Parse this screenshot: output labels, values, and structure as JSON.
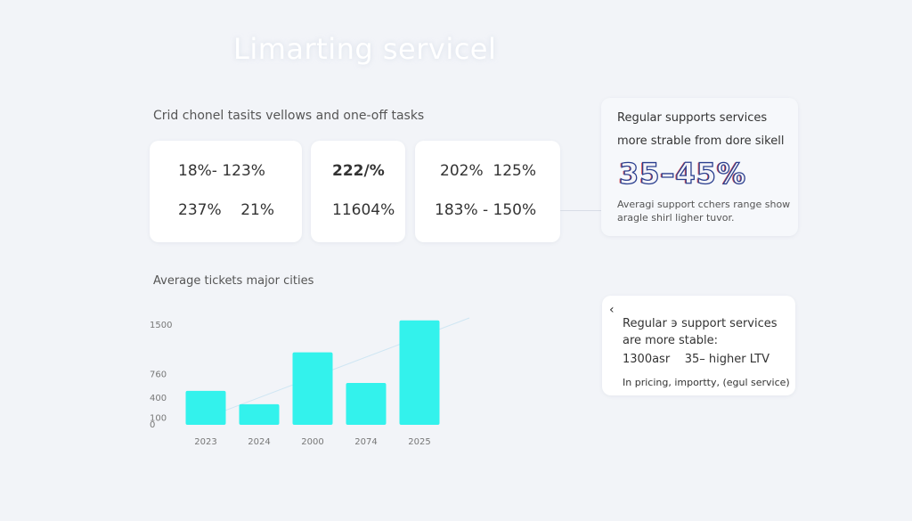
{
  "header": {
    "title": "Limarting servicel",
    "subtitle": "Crid chonel tasits vellows and one-off tasks"
  },
  "stat_cards": [
    {
      "line1": "18%- 123%",
      "line2": "237%    21%"
    },
    {
      "line1": "222/%",
      "line2": "11604%"
    },
    {
      "line1": "202%  125%",
      "line2": "183% - 150%"
    }
  ],
  "highlight_panel": {
    "line1": "Regular supports services",
    "line2": "more strable from dore sikell",
    "big": "35–45%",
    "note1": "Averagi support cchers range show",
    "note2": "aragle shirl ligher tuvor."
  },
  "info_card": {
    "icon": "‹",
    "line1": "Regular ϶ support services",
    "line2": "are more stable:",
    "line3": "1300asr    35– higher LTV",
    "line4": "In pricing, importty, (egul service)"
  },
  "chart_data": {
    "type": "bar",
    "title": "Average tickets major cities",
    "categories": [
      "2023",
      "2024",
      "2000",
      "2074",
      "2025"
    ],
    "values": [
      510,
      310,
      1090,
      630,
      1570
    ],
    "color": "#33f2ec",
    "ylim": [
      0,
      1600
    ],
    "yticks": [
      0,
      100,
      400,
      760,
      1500
    ],
    "grid": false
  }
}
